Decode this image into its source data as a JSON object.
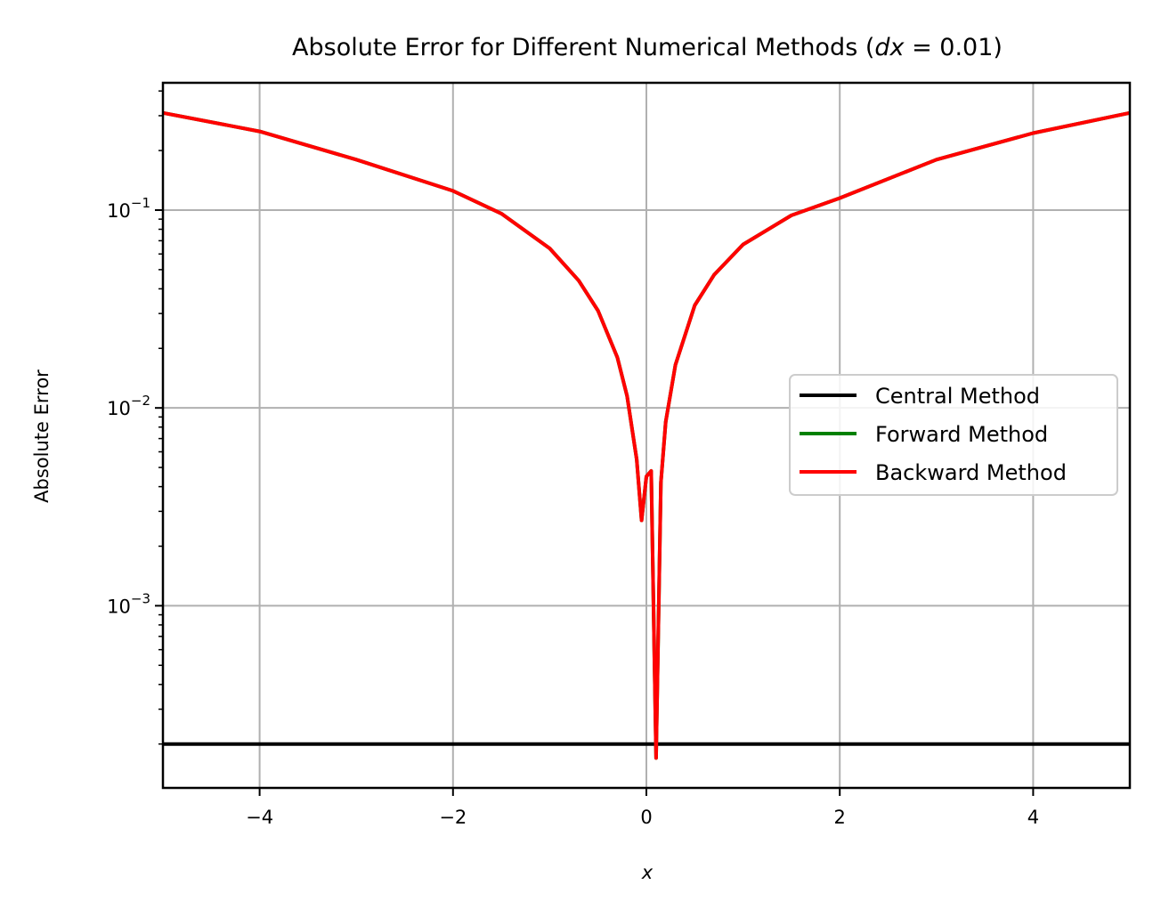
{
  "chart_data": {
    "type": "line",
    "title_prefix": "Absolute Error for Different Numerical Methods (",
    "title_math_var": "dx",
    "title_math_rest": " = 0.01)",
    "xlabel": "x",
    "ylabel": "Absolute Error",
    "xlim": [
      -5,
      5
    ],
    "ylim": [
      0.00012,
      0.44
    ],
    "yscale": "log",
    "grid": true,
    "legend_position": "center-right",
    "x_ticks": [
      {
        "value": -4,
        "label": "−4"
      },
      {
        "value": -2,
        "label": "−2"
      },
      {
        "value": 0,
        "label": "0"
      },
      {
        "value": 2,
        "label": "2"
      },
      {
        "value": 4,
        "label": "4"
      }
    ],
    "y_ticks": [
      {
        "value": 0.001,
        "base": "10",
        "exp": "−3"
      },
      {
        "value": 0.01,
        "base": "10",
        "exp": "−2"
      },
      {
        "value": 0.1,
        "base": "10",
        "exp": "−1"
      }
    ],
    "series": [
      {
        "name": "Central Method",
        "color": "#000000",
        "x": [
          -5,
          5
        ],
        "y": [
          0.0002,
          0.0002
        ]
      },
      {
        "name": "Forward Method",
        "color": "#008000",
        "x": [
          -5,
          -4,
          -3,
          -2,
          -1.5,
          -1,
          -0.7,
          -0.5,
          -0.3,
          -0.2,
          -0.1,
          -0.05,
          0.0,
          0.05,
          0.1,
          0.15,
          0.2,
          0.3,
          0.5,
          0.7,
          1,
          1.5,
          2,
          3,
          4,
          5
        ],
        "y": [
          0.31,
          0.25,
          0.18,
          0.125,
          0.096,
          0.064,
          0.044,
          0.031,
          0.018,
          0.0115,
          0.0055,
          0.0027,
          0.0045,
          0.0048,
          0.00017,
          0.0042,
          0.0085,
          0.0165,
          0.033,
          0.047,
          0.067,
          0.094,
          0.115,
          0.18,
          0.245,
          0.31
        ]
      },
      {
        "name": "Backward Method",
        "color": "#ff0000",
        "x": [
          -5,
          -4,
          -3,
          -2,
          -1.5,
          -1,
          -0.7,
          -0.5,
          -0.3,
          -0.2,
          -0.1,
          -0.05,
          0.0,
          0.05,
          0.1,
          0.15,
          0.2,
          0.3,
          0.5,
          0.7,
          1,
          1.5,
          2,
          3,
          4,
          5
        ],
        "y": [
          0.31,
          0.25,
          0.18,
          0.125,
          0.096,
          0.064,
          0.044,
          0.031,
          0.018,
          0.0115,
          0.0055,
          0.0027,
          0.0045,
          0.0048,
          0.00017,
          0.0042,
          0.0085,
          0.0165,
          0.033,
          0.047,
          0.067,
          0.094,
          0.115,
          0.18,
          0.245,
          0.31
        ]
      }
    ]
  }
}
